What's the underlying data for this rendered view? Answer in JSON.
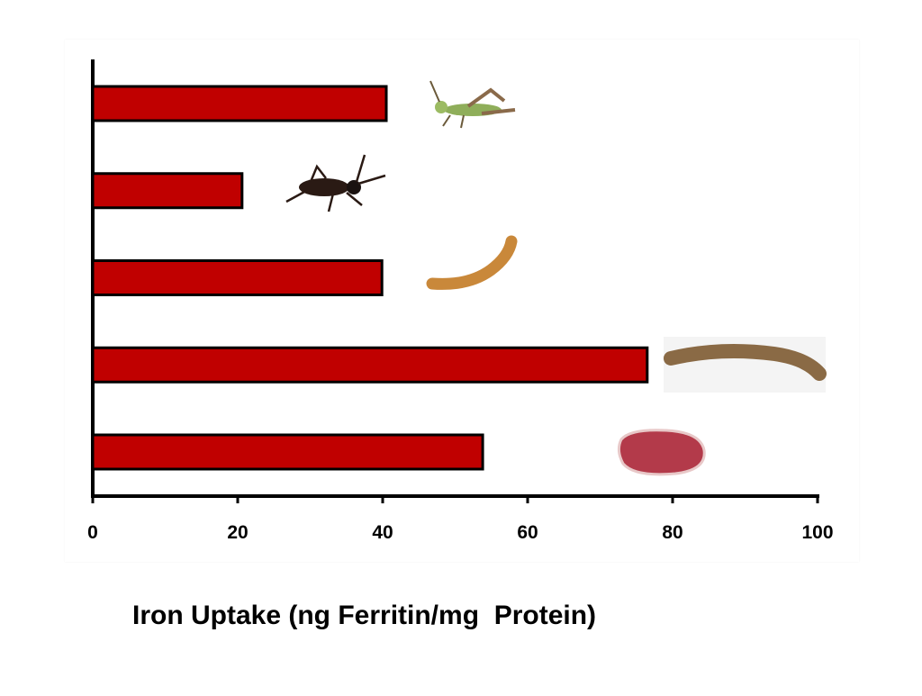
{
  "chart_data": {
    "type": "bar",
    "orientation": "horizontal",
    "title": "",
    "xlabel": "Iron Uptake (ng Ferritin/mg  Protein)",
    "ylabel": "",
    "xlim": [
      0,
      100
    ],
    "xticks": [
      0,
      20,
      40,
      60,
      80,
      100
    ],
    "category_icons": [
      "grasshopper-icon",
      "cricket-icon",
      "mealworm-icon",
      "larva-icon",
      "beef-icon"
    ],
    "values": [
      40.5,
      20.6,
      39.9,
      76.5,
      53.8
    ],
    "bar_color": "#c00000",
    "bar_outline": "#000000",
    "grid": false,
    "legend": "none"
  }
}
